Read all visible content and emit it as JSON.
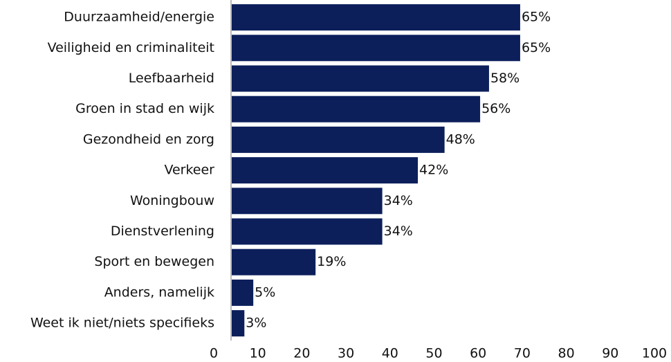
{
  "chart_data": {
    "type": "bar",
    "orientation": "horizontal",
    "categories": [
      "Duurzaamheid/energie",
      "Veiligheid en criminaliteit",
      "Leefbaarheid",
      "Groen in stad en wijk",
      "Gezondheid en zorg",
      "Verkeer",
      "Woningbouw",
      "Dienstverlening",
      "Sport en bewegen",
      "Anders, namelijk",
      "Weet ik niet/niets specifieks"
    ],
    "values": [
      65,
      65,
      58,
      56,
      48,
      42,
      34,
      34,
      19,
      5,
      3
    ],
    "value_labels": [
      "65%",
      "65%",
      "58%",
      "56%",
      "48%",
      "42%",
      "34%",
      "34%",
      "19%",
      "5%",
      "3%"
    ],
    "color": "#0c1f5b",
    "xlim": [
      0,
      100
    ],
    "xticks": [
      0,
      10,
      20,
      30,
      40,
      50,
      60,
      70,
      80,
      90,
      100
    ],
    "grid": false
  }
}
